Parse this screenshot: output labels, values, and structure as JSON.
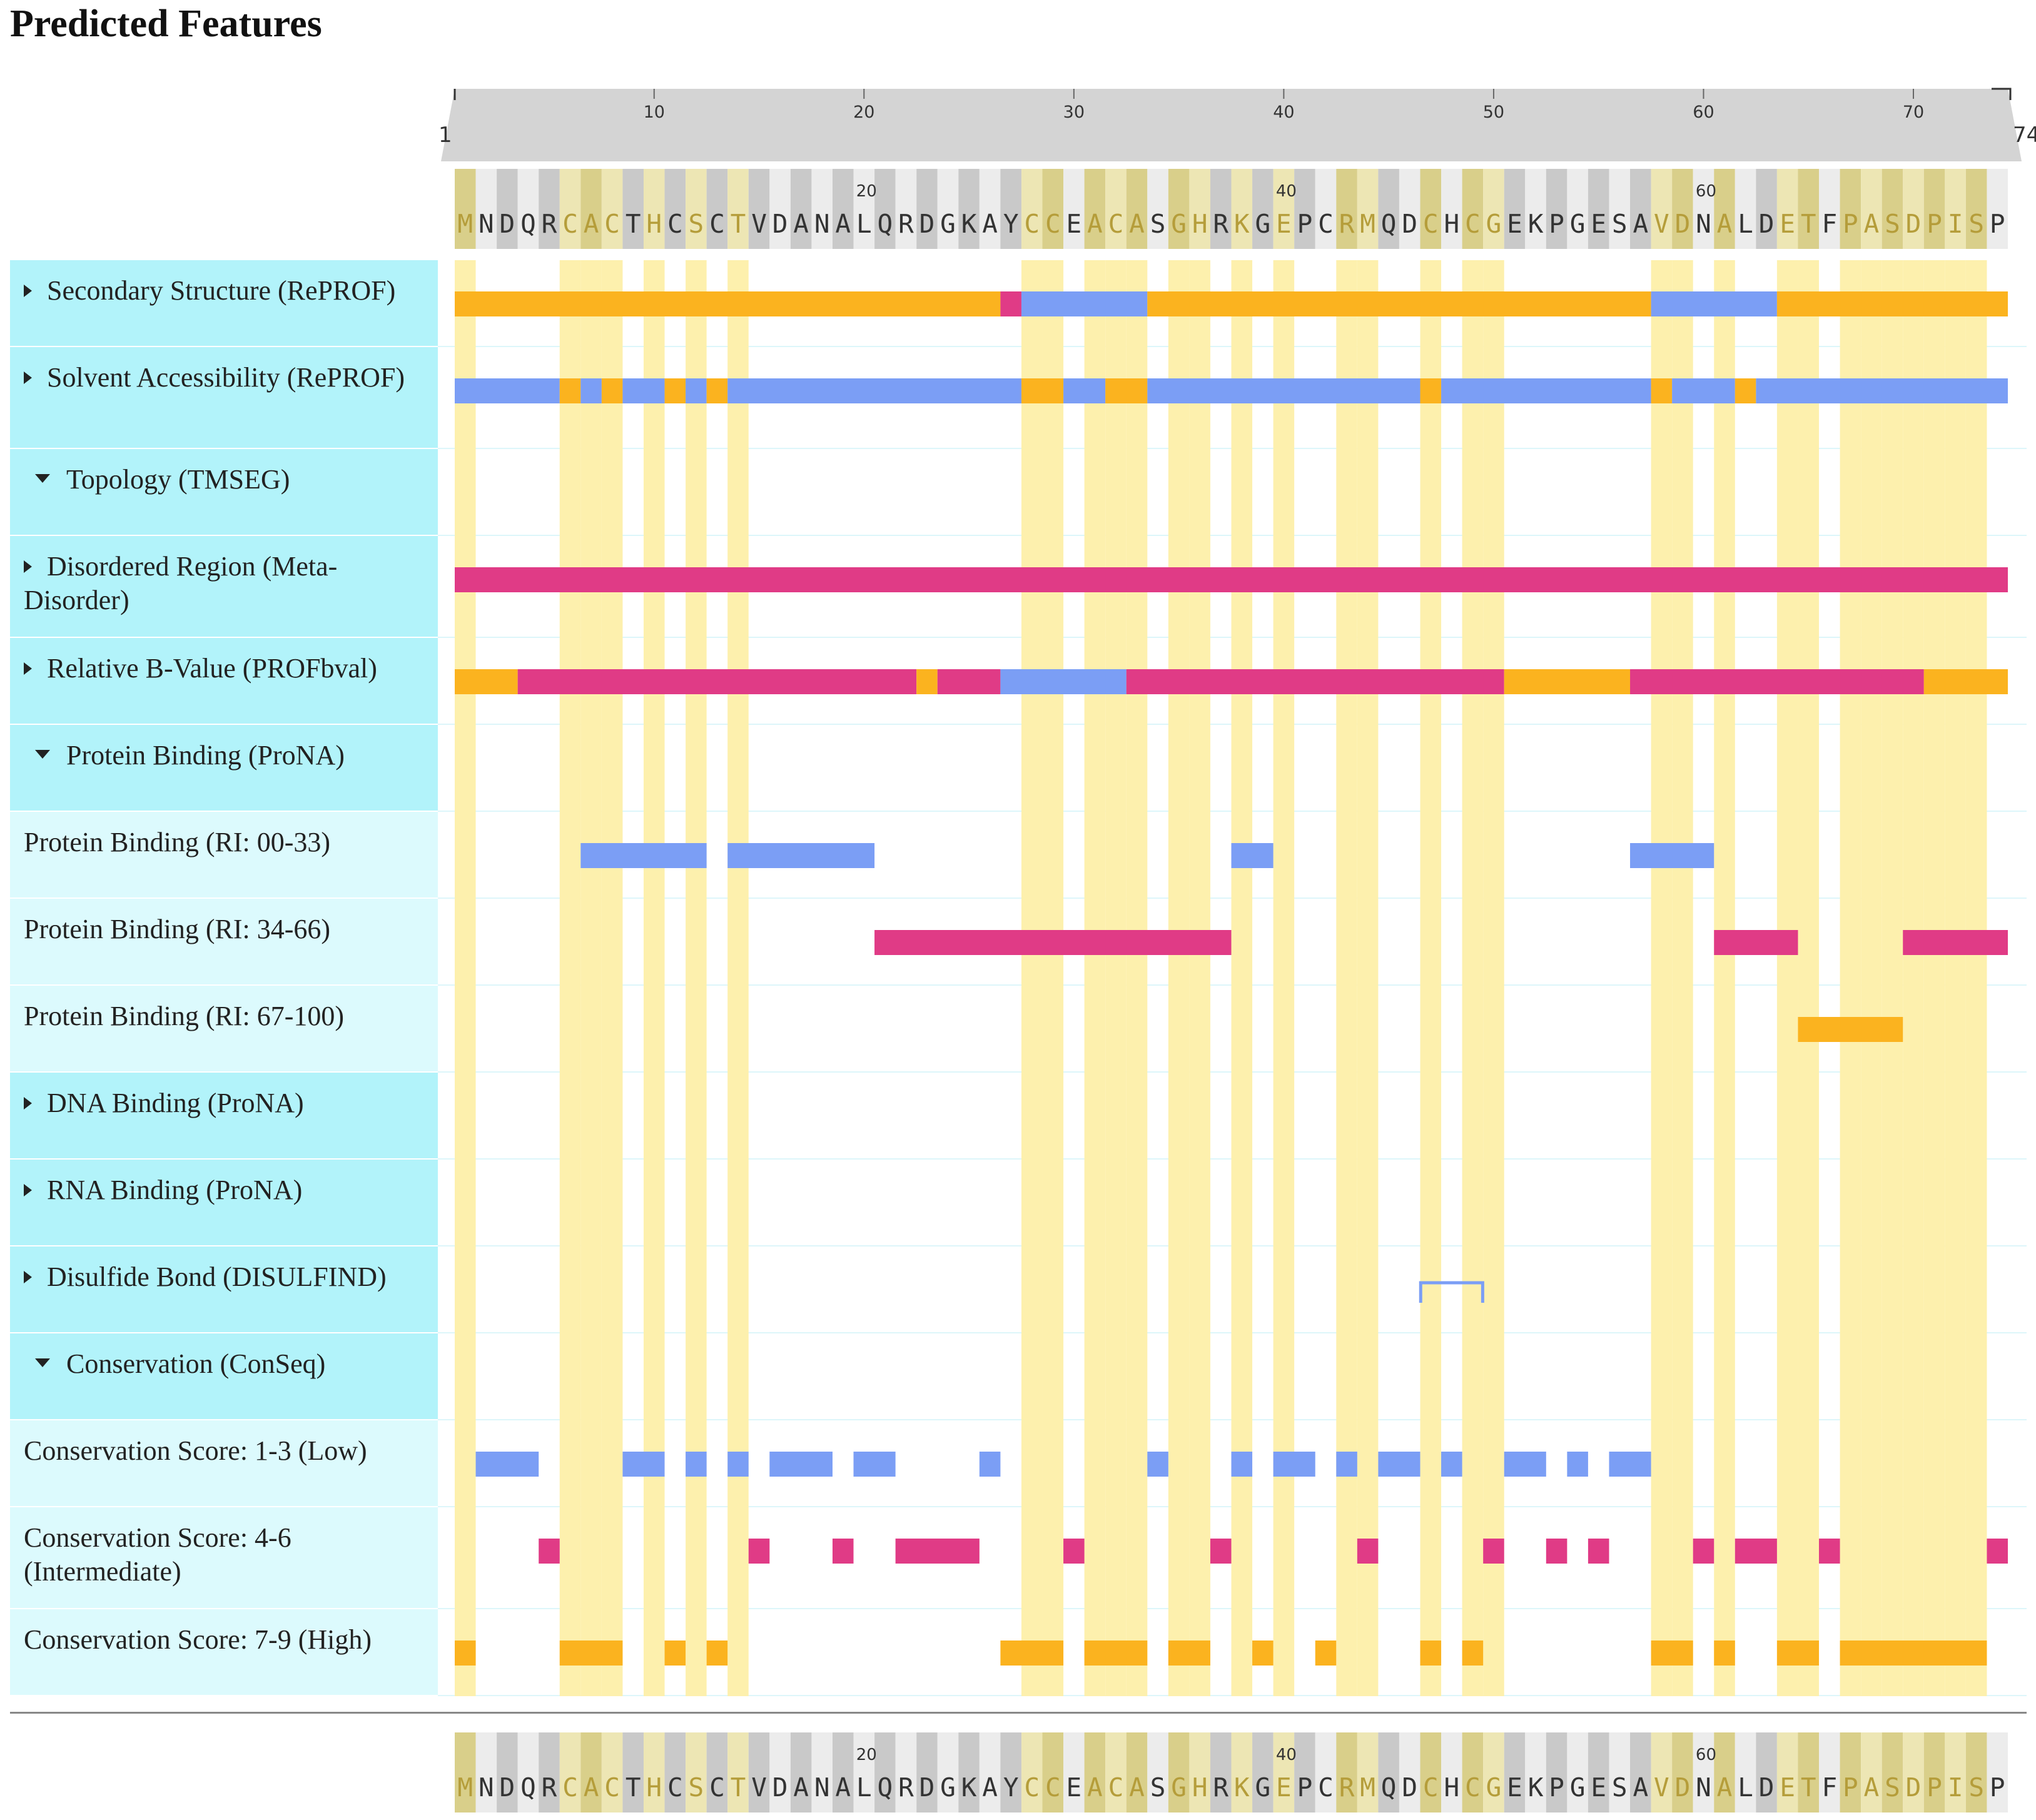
{
  "page": {
    "title": "Predicted Features"
  },
  "sequence": "MNDQRCACTHCSCTVDANALQRDGKAYCCEACASGHRKGEPCRMQDCHCGEKPGESAVDNALDETFPASDPISP",
  "ruler": {
    "start_label": "1",
    "end_label": "74",
    "ticks": [
      "10",
      "20",
      "30",
      "40",
      "50",
      "60",
      "70"
    ],
    "seq_marks": [
      "20",
      "40",
      "60"
    ]
  },
  "colors": {
    "helix": "#fbb31f",
    "strand": "#7b9ef5",
    "other": "#e03b86",
    "highlight": "#fdf0ad",
    "category_bg": "#b2f3fa",
    "sub_bg": "#dcfafd",
    "ruler_bg": "#d4d4d4"
  },
  "highlighted_positions": [
    1,
    6,
    7,
    8,
    10,
    12,
    14,
    28,
    29,
    31,
    32,
    33,
    35,
    36,
    38,
    40,
    43,
    44,
    47,
    49,
    50,
    58,
    59,
    61,
    64,
    65,
    67,
    68,
    69,
    70,
    71,
    72,
    73
  ],
  "tracks": [
    {
      "kind": "category",
      "expanded": false,
      "label": "Secondary Structure (RePROF)",
      "segments": [
        [
          1,
          26,
          "helix"
        ],
        [
          27,
          27,
          "other"
        ],
        [
          28,
          33,
          "strand"
        ],
        [
          34,
          57,
          "helix"
        ],
        [
          58,
          63,
          "strand"
        ],
        [
          64,
          74,
          "helix"
        ]
      ]
    },
    {
      "kind": "category",
      "expanded": false,
      "label": "Solvent Accessibility (RePROF)",
      "segments": [
        [
          1,
          5,
          "strand"
        ],
        [
          6,
          6,
          "helix"
        ],
        [
          7,
          7,
          "strand"
        ],
        [
          8,
          8,
          "helix"
        ],
        [
          9,
          10,
          "strand"
        ],
        [
          11,
          11,
          "helix"
        ],
        [
          12,
          12,
          "strand"
        ],
        [
          13,
          13,
          "helix"
        ],
        [
          14,
          27,
          "strand"
        ],
        [
          28,
          29,
          "helix"
        ],
        [
          30,
          31,
          "strand"
        ],
        [
          32,
          33,
          "helix"
        ],
        [
          34,
          46,
          "strand"
        ],
        [
          47,
          47,
          "helix"
        ],
        [
          48,
          57,
          "strand"
        ],
        [
          58,
          58,
          "helix"
        ],
        [
          59,
          61,
          "strand"
        ],
        [
          62,
          62,
          "helix"
        ],
        [
          63,
          74,
          "strand"
        ]
      ]
    },
    {
      "kind": "category",
      "expanded": true,
      "label": "Topology (TMSEG)",
      "segments": []
    },
    {
      "kind": "category",
      "expanded": false,
      "label": "Disordered Region (Meta-Disorder)",
      "segments": [
        [
          1,
          74,
          "other"
        ]
      ]
    },
    {
      "kind": "category",
      "expanded": false,
      "label": "Relative B-Value (PROFbval)",
      "segments": [
        [
          1,
          3,
          "helix"
        ],
        [
          4,
          22,
          "other"
        ],
        [
          23,
          23,
          "helix"
        ],
        [
          24,
          26,
          "other"
        ],
        [
          27,
          32,
          "strand"
        ],
        [
          33,
          50,
          "other"
        ],
        [
          51,
          56,
          "helix"
        ],
        [
          57,
          70,
          "other"
        ],
        [
          71,
          74,
          "helix"
        ]
      ]
    },
    {
      "kind": "category",
      "expanded": true,
      "label": "Protein Binding (ProNA)",
      "segments": []
    },
    {
      "kind": "sub",
      "label": "Protein Binding (RI: 00-33)",
      "segments": [
        [
          7,
          12,
          "strand"
        ],
        [
          14,
          20,
          "strand"
        ],
        [
          38,
          39,
          "strand"
        ],
        [
          57,
          60,
          "strand"
        ]
      ]
    },
    {
      "kind": "sub",
      "label": "Protein Binding (RI: 34-66)",
      "segments": [
        [
          21,
          37,
          "other"
        ],
        [
          61,
          64,
          "other"
        ],
        [
          70,
          74,
          "other"
        ]
      ]
    },
    {
      "kind": "sub",
      "label": "Protein Binding (RI: 67-100)",
      "segments": [
        [
          65,
          69,
          "helix"
        ]
      ]
    },
    {
      "kind": "category",
      "expanded": false,
      "label": "DNA Binding (ProNA)",
      "segments": []
    },
    {
      "kind": "category",
      "expanded": false,
      "label": "RNA Binding (ProNA)",
      "segments": []
    },
    {
      "kind": "category",
      "expanded": false,
      "label": "Disulfide Bond (DISULFIND)",
      "segments": [],
      "bond": [
        47,
        49
      ]
    },
    {
      "kind": "category",
      "expanded": true,
      "label": "Conservation (ConSeq)",
      "segments": []
    },
    {
      "kind": "sub",
      "label": "Conservation Score: 1-3 (Low)",
      "segments": [
        [
          2,
          4,
          "strand"
        ],
        [
          9,
          10,
          "strand"
        ],
        [
          12,
          12,
          "strand"
        ],
        [
          14,
          14,
          "strand"
        ],
        [
          16,
          18,
          "strand"
        ],
        [
          20,
          21,
          "strand"
        ],
        [
          26,
          26,
          "strand"
        ],
        [
          34,
          34,
          "strand"
        ],
        [
          38,
          38,
          "strand"
        ],
        [
          40,
          41,
          "strand"
        ],
        [
          43,
          43,
          "strand"
        ],
        [
          45,
          46,
          "strand"
        ],
        [
          48,
          48,
          "strand"
        ],
        [
          51,
          52,
          "strand"
        ],
        [
          54,
          54,
          "strand"
        ],
        [
          56,
          57,
          "strand"
        ]
      ]
    },
    {
      "kind": "sub",
      "label": "Conservation Score: 4-6 (Intermediate)",
      "segments": [
        [
          5,
          5,
          "other"
        ],
        [
          15,
          15,
          "other"
        ],
        [
          19,
          19,
          "other"
        ],
        [
          22,
          25,
          "other"
        ],
        [
          30,
          30,
          "other"
        ],
        [
          37,
          37,
          "other"
        ],
        [
          44,
          44,
          "other"
        ],
        [
          50,
          50,
          "other"
        ],
        [
          53,
          53,
          "other"
        ],
        [
          55,
          55,
          "other"
        ],
        [
          60,
          60,
          "other"
        ],
        [
          62,
          63,
          "other"
        ],
        [
          66,
          66,
          "other"
        ],
        [
          74,
          74,
          "other"
        ]
      ]
    },
    {
      "kind": "sub",
      "label": "Conservation Score: 7-9 (High)",
      "segments": [
        [
          1,
          1,
          "helix"
        ],
        [
          6,
          8,
          "helix"
        ],
        [
          11,
          11,
          "helix"
        ],
        [
          13,
          13,
          "helix"
        ],
        [
          27,
          29,
          "helix"
        ],
        [
          31,
          33,
          "helix"
        ],
        [
          35,
          36,
          "helix"
        ],
        [
          39,
          39,
          "helix"
        ],
        [
          42,
          42,
          "helix"
        ],
        [
          47,
          47,
          "helix"
        ],
        [
          49,
          49,
          "helix"
        ],
        [
          58,
          59,
          "helix"
        ],
        [
          61,
          61,
          "helix"
        ],
        [
          64,
          65,
          "helix"
        ],
        [
          67,
          73,
          "helix"
        ]
      ]
    }
  ]
}
